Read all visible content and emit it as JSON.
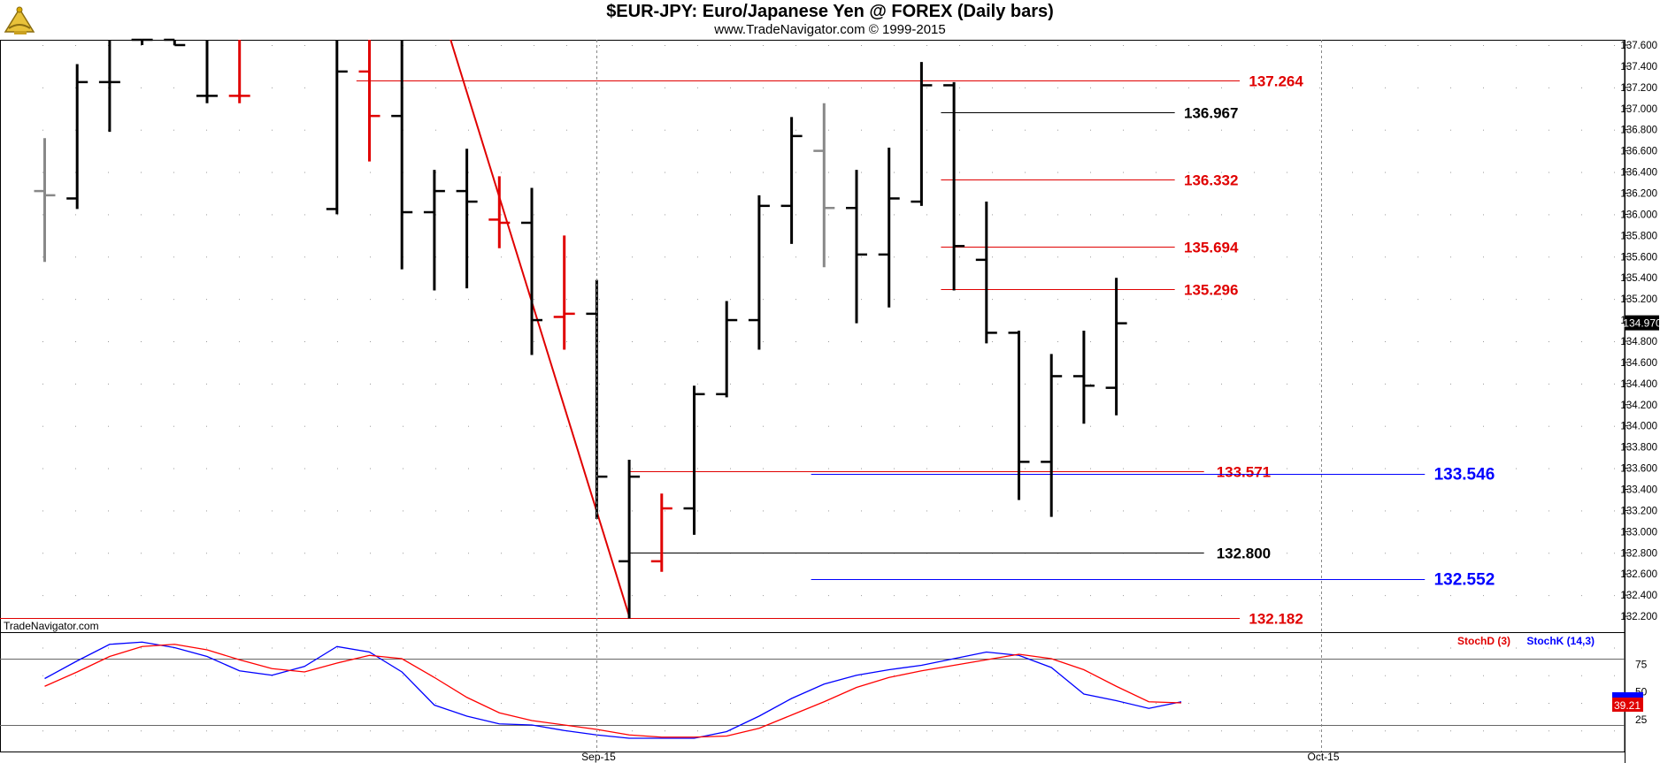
{
  "header": {
    "title": "$EUR-JPY:  Euro/Japanese Yen @ FOREX  (Daily bars)",
    "copyright": "www.TradeNavigator.com © 1999-2015",
    "logo_icon": "sextant-icon"
  },
  "watermark": "TradeNavigator.com",
  "colors": {
    "up": "#000000",
    "down": "#e00000",
    "neutral": "#888888",
    "stochK": "#0000ff",
    "stochD": "#ff0000",
    "line": "#ff0000",
    "blue": "#0000ff"
  },
  "chart_data": [
    {
      "type": "ohlc",
      "title": "$EUR-JPY:  Euro/Japanese Yen @ FOREX  (Daily bars)",
      "xlabel": "",
      "ylabel": "",
      "ylim": [
        132.05,
        137.65
      ],
      "y_ticks": [
        "137.600",
        "137.400",
        "137.200",
        "137.000",
        "136.800",
        "136.600",
        "136.400",
        "136.200",
        "136.000",
        "135.800",
        "135.600",
        "135.400",
        "135.200",
        "135.000",
        "134.800",
        "134.600",
        "134.400",
        "134.200",
        "134.000",
        "133.800",
        "133.600",
        "133.400",
        "133.200",
        "133.000",
        "132.800",
        "132.600",
        "132.400",
        "132.200"
      ],
      "x_tick_labels": [
        {
          "label": "Sep-15",
          "bar": 17
        },
        {
          "label": "Oct-15",
          "bar": 39.3
        }
      ],
      "last_price": "134.970",
      "bars": [
        {
          "o": 136.22,
          "h": 136.72,
          "l": 135.55,
          "c": 136.18,
          "color": "neutral"
        },
        {
          "o": 136.15,
          "h": 137.42,
          "l": 136.05,
          "c": 137.25,
          "color": "up"
        },
        {
          "o": 137.25,
          "h": 137.65,
          "l": 136.78,
          "c": 137.25,
          "color": "up"
        },
        {
          "o": 137.65,
          "h": 137.65,
          "l": 137.6,
          "c": 137.65,
          "color": "up"
        },
        {
          "o": 137.65,
          "h": 137.65,
          "l": 137.6,
          "c": 137.6,
          "color": "up"
        },
        {
          "o": 137.12,
          "h": 137.65,
          "l": 137.05,
          "c": 137.12,
          "color": "up"
        },
        {
          "o": 137.12,
          "h": 137.65,
          "l": 137.05,
          "c": 137.12,
          "color": "down"
        },
        {
          "o": null,
          "h": null,
          "l": null,
          "c": null,
          "color": "up"
        },
        {
          "o": null,
          "h": null,
          "l": null,
          "c": null,
          "color": "up"
        },
        {
          "o": 136.05,
          "h": 137.65,
          "l": 136.0,
          "c": 137.35,
          "color": "up"
        },
        {
          "o": 137.35,
          "h": 137.65,
          "l": 136.5,
          "c": 136.93,
          "color": "down"
        },
        {
          "o": 136.93,
          "h": 137.65,
          "l": 135.48,
          "c": 136.02,
          "color": "up"
        },
        {
          "o": 136.02,
          "h": 136.42,
          "l": 135.28,
          "c": 136.22,
          "color": "up"
        },
        {
          "o": 136.22,
          "h": 136.62,
          "l": 135.3,
          "c": 136.12,
          "color": "up"
        },
        {
          "o": 135.95,
          "h": 136.36,
          "l": 135.68,
          "c": 135.92,
          "color": "down"
        },
        {
          "o": 135.92,
          "h": 136.25,
          "l": 134.67,
          "c": 135.0,
          "color": "up"
        },
        {
          "o": 135.03,
          "h": 135.8,
          "l": 134.72,
          "c": 135.06,
          "color": "down"
        },
        {
          "o": 135.06,
          "h": 135.38,
          "l": 133.12,
          "c": 133.52,
          "color": "up"
        },
        {
          "o": 132.72,
          "h": 133.68,
          "l": 132.18,
          "c": 133.52,
          "color": "up"
        },
        {
          "o": 132.72,
          "h": 133.36,
          "l": 132.62,
          "c": 133.22,
          "color": "down"
        },
        {
          "o": 133.22,
          "h": 134.38,
          "l": 132.97,
          "c": 134.3,
          "color": "up"
        },
        {
          "o": 134.3,
          "h": 135.18,
          "l": 134.27,
          "c": 135.0,
          "color": "up"
        },
        {
          "o": 135.0,
          "h": 136.18,
          "l": 134.72,
          "c": 136.08,
          "color": "up"
        },
        {
          "o": 136.08,
          "h": 136.92,
          "l": 135.72,
          "c": 136.74,
          "color": "up"
        },
        {
          "o": 136.6,
          "h": 137.05,
          "l": 135.5,
          "c": 136.06,
          "color": "neutral"
        },
        {
          "o": 136.06,
          "h": 136.42,
          "l": 134.97,
          "c": 135.62,
          "color": "up"
        },
        {
          "o": 135.62,
          "h": 136.63,
          "l": 135.12,
          "c": 136.15,
          "color": "up"
        },
        {
          "o": 136.12,
          "h": 137.44,
          "l": 136.08,
          "c": 137.22,
          "color": "up"
        },
        {
          "o": 137.22,
          "h": 137.25,
          "l": 135.28,
          "c": 135.7,
          "color": "up"
        },
        {
          "o": 135.57,
          "h": 136.12,
          "l": 134.78,
          "c": 134.88,
          "color": "up"
        },
        {
          "o": 134.88,
          "h": 134.9,
          "l": 133.3,
          "c": 133.66,
          "color": "up"
        },
        {
          "o": 133.66,
          "h": 134.68,
          "l": 133.14,
          "c": 134.47,
          "color": "up"
        },
        {
          "o": 134.47,
          "h": 134.9,
          "l": 134.02,
          "c": 134.38,
          "color": "up"
        },
        {
          "o": 134.36,
          "h": 135.4,
          "l": 134.1,
          "c": 134.97,
          "color": "up"
        }
      ],
      "levels": [
        {
          "value": 137.264,
          "label": "137.264",
          "color": "#e00000",
          "from_bar": 9.6,
          "to_bar": 36.8,
          "label_bar": 37.0
        },
        {
          "value": 136.967,
          "label": "136.967",
          "color": "#000000",
          "from_bar": 27.6,
          "to_bar": 34.8,
          "label_bar": 35.0
        },
        {
          "value": 136.332,
          "label": "136.332",
          "color": "#e00000",
          "from_bar": 27.6,
          "to_bar": 34.8,
          "label_bar": 35.0
        },
        {
          "value": 135.694,
          "label": "135.694",
          "color": "#e00000",
          "from_bar": 27.6,
          "to_bar": 34.8,
          "label_bar": 35.0
        },
        {
          "value": 135.296,
          "label": "135.296",
          "color": "#e00000",
          "from_bar": 27.6,
          "to_bar": 34.8,
          "label_bar": 35.0
        },
        {
          "value": 133.571,
          "label": "133.571",
          "color": "#e00000",
          "from_bar": 18.0,
          "to_bar": 35.7,
          "label_bar": 36.0
        },
        {
          "value": 133.546,
          "label": "133.546",
          "color": "#0000ff",
          "from_bar": 23.6,
          "to_bar": 42.5,
          "label_bar": 42.7
        },
        {
          "value": 132.8,
          "label": "132.800",
          "color": "#000000",
          "from_bar": 18.0,
          "to_bar": 35.7,
          "label_bar": 36.0
        },
        {
          "value": 132.552,
          "label": "132.552",
          "color": "#0000ff",
          "from_bar": 23.6,
          "to_bar": 42.5,
          "label_bar": 42.7
        },
        {
          "value": 132.182,
          "label": "132.182",
          "color": "#e00000",
          "from_bar": -1.5,
          "to_bar": 36.8,
          "label_bar": 37.0
        }
      ],
      "trendline": {
        "from": {
          "bar": 12.5,
          "value": 137.65
        },
        "to": {
          "bar": 18.0,
          "value": 132.2
        },
        "color": "#e00000"
      }
    },
    {
      "type": "line",
      "title": "",
      "ylim": [
        0,
        100
      ],
      "y_ticks": [
        "75",
        "50",
        "25"
      ],
      "hlines": [
        80,
        20
      ],
      "last_value": "39.21",
      "series": [
        {
          "name": "StochK (14,3)",
          "color": "#0000ff",
          "values": [
            62,
            78,
            93,
            95,
            90,
            82,
            69,
            65,
            73,
            91,
            86,
            68,
            38,
            28,
            21,
            20,
            15,
            11,
            8,
            8,
            8,
            14,
            28,
            44,
            57,
            65,
            70,
            74,
            80,
            86,
            83,
            72,
            48,
            42,
            35,
            41
          ]
        },
        {
          "name": "StochD (3)",
          "color": "#ff0000",
          "values": [
            55,
            68,
            82,
            91,
            93,
            88,
            79,
            71,
            68,
            76,
            83,
            80,
            63,
            45,
            31,
            24,
            20,
            16,
            11,
            9,
            9,
            10,
            17,
            29,
            41,
            54,
            63,
            69,
            74,
            79,
            84,
            80,
            70,
            55,
            41,
            40
          ]
        }
      ],
      "legend": [
        "StochD (3)",
        "StochK (14,3)"
      ]
    }
  ]
}
